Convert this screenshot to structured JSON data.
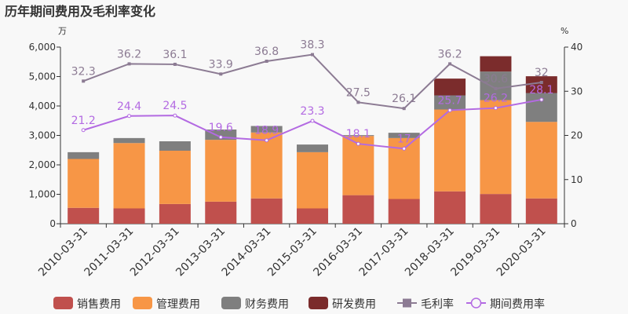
{
  "chart_data": {
    "type": "bar",
    "title": "历年期间费用及毛利率变化",
    "y_unit_left": "万",
    "y_unit_right": "%",
    "ylim_left": [
      0,
      6000
    ],
    "yticks_left": [
      "0",
      "1,000",
      "2,000",
      "3,000",
      "4,000",
      "5,000",
      "6,000"
    ],
    "ylim_right": [
      0,
      40
    ],
    "yticks_right": [
      "0",
      "10",
      "20",
      "30",
      "40"
    ],
    "categories": [
      "2010-03-31",
      "2011-03-31",
      "2012-03-31",
      "2013-03-31",
      "2014-03-31",
      "2015-03-31",
      "2016-03-31",
      "2017-03-31",
      "2018-03-31",
      "2019-03-31",
      "2020-03-31"
    ],
    "series": [
      {
        "name": "销售费用",
        "kind": "bar",
        "color": "#c0504d",
        "values": [
          540,
          520,
          670,
          750,
          860,
          520,
          970,
          840,
          1100,
          1010,
          860
        ]
      },
      {
        "name": "管理费用",
        "kind": "bar",
        "color": "#f79646",
        "values": [
          1660,
          2220,
          1810,
          2100,
          2240,
          1910,
          2010,
          2070,
          2780,
          3190,
          2600
        ]
      },
      {
        "name": "财务费用",
        "kind": "bar",
        "color": "#7f7f7f",
        "values": [
          230,
          170,
          320,
          350,
          220,
          260,
          30,
          180,
          480,
          970,
          980
        ]
      },
      {
        "name": "研发费用",
        "kind": "bar",
        "color": "#7b2c2c",
        "values": [
          0,
          0,
          0,
          0,
          0,
          0,
          0,
          0,
          570,
          520,
          570
        ]
      },
      {
        "name": "毛利率",
        "kind": "line",
        "axis": "right",
        "color": "#8c7b93",
        "values": [
          32.3,
          36.2,
          36.1,
          33.9,
          36.8,
          38.3,
          27.5,
          26.1,
          36.2,
          30.6,
          32
        ],
        "labels": [
          "32.3",
          "36.2",
          "36.1",
          "33.9",
          "36.8",
          "38.3",
          "27.5",
          "26.1",
          "36.2",
          "30.6",
          "32"
        ]
      },
      {
        "name": "期间费用率",
        "kind": "line",
        "axis": "right",
        "color": "#b36ae2",
        "values": [
          21.2,
          24.4,
          24.5,
          19.6,
          18.9,
          23.3,
          18.1,
          17.0,
          25.7,
          26.2,
          28.1
        ],
        "labels": [
          "21.2",
          "24.4",
          "24.5",
          "19.6",
          "18.9",
          "23.3",
          "18.1",
          "17",
          "25.7",
          "26.2",
          "28.1"
        ]
      }
    ],
    "legend_position": "bottom",
    "grid": false
  }
}
